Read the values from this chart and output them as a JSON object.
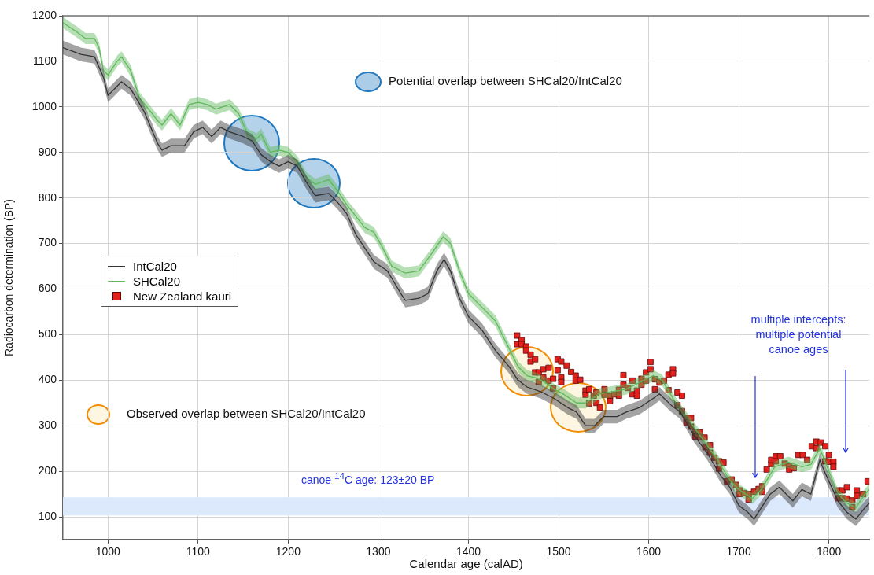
{
  "chart_data": {
    "type": "line",
    "xlabel": "Calendar age (calAD)",
    "ylabel": "Radiocarbon determination (BP)",
    "xlim": [
      950,
      1845
    ],
    "ylim": [
      50,
      1200
    ],
    "xticks": [
      1000,
      1100,
      1200,
      1300,
      1400,
      1500,
      1600,
      1700,
      1800
    ],
    "yticks": [
      100,
      200,
      300,
      400,
      500,
      600,
      700,
      800,
      900,
      1000,
      1100,
      1200
    ],
    "grid": true,
    "legend": "left",
    "series": [
      {
        "name": "IntCal20",
        "type": "line",
        "color": "#333333",
        "marker": "none",
        "x": [
          950,
          970,
          985,
          995,
          1000,
          1010,
          1015,
          1025,
          1040,
          1055,
          1060,
          1070,
          1085,
          1095,
          1105,
          1115,
          1125,
          1135,
          1150,
          1160,
          1170,
          1180,
          1190,
          1200,
          1210,
          1220,
          1230,
          1245,
          1255,
          1265,
          1275,
          1285,
          1295,
          1310,
          1325,
          1330,
          1345,
          1355,
          1365,
          1373,
          1380,
          1390,
          1400,
          1415,
          1430,
          1445,
          1455,
          1465,
          1480,
          1495,
          1510,
          1520,
          1530,
          1540,
          1550,
          1565,
          1575,
          1590,
          1605,
          1612,
          1625,
          1635,
          1650,
          1665,
          1680,
          1690,
          1700,
          1710,
          1717,
          1725,
          1735,
          1745,
          1760,
          1770,
          1780,
          1790,
          1795,
          1810,
          1820,
          1830,
          1840,
          1845
        ],
        "values": [
          1130,
          1115,
          1110,
          1065,
          1025,
          1045,
          1055,
          1040,
          990,
          920,
          905,
          915,
          915,
          945,
          955,
          935,
          955,
          945,
          935,
          925,
          895,
          880,
          870,
          880,
          870,
          835,
          805,
          810,
          790,
          765,
          720,
          690,
          660,
          640,
          590,
          575,
          580,
          590,
          640,
          665,
          640,
          580,
          540,
          510,
          465,
          430,
          400,
          385,
          375,
          360,
          340,
          330,
          300,
          300,
          320,
          320,
          330,
          340,
          360,
          370,
          345,
          330,
          280,
          240,
          190,
          165,
          125,
          110,
          95,
          120,
          150,
          165,
          135,
          160,
          150,
          225,
          200,
          135,
          110,
          95,
          120,
          130
        ],
        "lower": [
          1115,
          1100,
          1095,
          1050,
          1010,
          1030,
          1040,
          1025,
          975,
          905,
          890,
          900,
          900,
          930,
          940,
          920,
          940,
          930,
          920,
          910,
          880,
          865,
          855,
          865,
          855,
          820,
          790,
          795,
          775,
          750,
          705,
          675,
          645,
          625,
          575,
          560,
          565,
          575,
          625,
          650,
          625,
          565,
          525,
          495,
          450,
          415,
          385,
          370,
          360,
          345,
          325,
          315,
          285,
          285,
          305,
          305,
          315,
          325,
          345,
          355,
          330,
          315,
          265,
          225,
          175,
          150,
          110,
          95,
          80,
          105,
          135,
          150,
          120,
          145,
          135,
          210,
          185,
          120,
          95,
          80,
          105,
          115
        ],
        "upper": [
          1145,
          1130,
          1125,
          1080,
          1040,
          1060,
          1070,
          1055,
          1005,
          935,
          920,
          930,
          930,
          960,
          970,
          950,
          970,
          960,
          950,
          940,
          910,
          895,
          885,
          895,
          885,
          850,
          820,
          825,
          805,
          780,
          735,
          705,
          675,
          655,
          605,
          590,
          595,
          605,
          655,
          680,
          655,
          595,
          555,
          525,
          480,
          445,
          415,
          400,
          390,
          375,
          355,
          345,
          315,
          315,
          335,
          335,
          345,
          355,
          375,
          385,
          360,
          345,
          295,
          255,
          205,
          180,
          140,
          125,
          110,
          135,
          165,
          180,
          150,
          175,
          165,
          240,
          215,
          150,
          125,
          110,
          135,
          145
        ]
      },
      {
        "name": "SHCal20",
        "type": "line",
        "color": "#5fb85c",
        "marker": "none",
        "x": [
          950,
          965,
          975,
          985,
          990,
          995,
          1000,
          1010,
          1015,
          1025,
          1035,
          1045,
          1055,
          1060,
          1070,
          1080,
          1090,
          1100,
          1110,
          1120,
          1135,
          1145,
          1155,
          1165,
          1170,
          1180,
          1190,
          1200,
          1210,
          1220,
          1230,
          1245,
          1255,
          1265,
          1275,
          1285,
          1295,
          1305,
          1315,
          1330,
          1345,
          1360,
          1372,
          1380,
          1390,
          1400,
          1415,
          1430,
          1445,
          1455,
          1465,
          1475,
          1485,
          1495,
          1505,
          1520,
          1530,
          1545,
          1560,
          1575,
          1590,
          1605,
          1615,
          1630,
          1645,
          1660,
          1675,
          1690,
          1700,
          1715,
          1725,
          1740,
          1755,
          1770,
          1780,
          1790,
          1800,
          1810,
          1820,
          1830,
          1840,
          1845
        ],
        "values": [
          1185,
          1165,
          1150,
          1150,
          1130,
          1080,
          1070,
          1100,
          1110,
          1080,
          1020,
          995,
          970,
          960,
          985,
          960,
          1005,
          1010,
          1005,
          995,
          1005,
          985,
          940,
          930,
          940,
          900,
          905,
          900,
          880,
          845,
          830,
          840,
          815,
          785,
          760,
          735,
          725,
          690,
          650,
          635,
          640,
          680,
          715,
          700,
          640,
          590,
          560,
          530,
          470,
          430,
          410,
          405,
          395,
          380,
          370,
          350,
          350,
          370,
          375,
          380,
          395,
          410,
          400,
          350,
          310,
          270,
          230,
          180,
          160,
          140,
          160,
          210,
          220,
          210,
          215,
          250,
          200,
          150,
          130,
          120,
          150,
          160
        ],
        "lower": [
          1173,
          1153,
          1138,
          1138,
          1118,
          1068,
          1058,
          1088,
          1098,
          1068,
          1008,
          983,
          958,
          948,
          973,
          948,
          993,
          998,
          993,
          983,
          993,
          973,
          928,
          918,
          928,
          888,
          893,
          888,
          868,
          833,
          818,
          828,
          803,
          773,
          748,
          723,
          713,
          678,
          638,
          623,
          628,
          668,
          703,
          688,
          628,
          578,
          548,
          518,
          458,
          418,
          398,
          393,
          383,
          368,
          358,
          338,
          338,
          358,
          363,
          368,
          383,
          398,
          388,
          338,
          298,
          258,
          218,
          168,
          148,
          128,
          148,
          198,
          208,
          198,
          203,
          238,
          188,
          138,
          118,
          108,
          138,
          148
        ],
        "upper": [
          1197,
          1177,
          1162,
          1162,
          1142,
          1092,
          1082,
          1112,
          1122,
          1092,
          1032,
          1007,
          982,
          972,
          997,
          972,
          1017,
          1022,
          1017,
          1007,
          1017,
          997,
          952,
          942,
          952,
          912,
          917,
          912,
          892,
          857,
          842,
          852,
          827,
          797,
          772,
          747,
          737,
          702,
          662,
          647,
          652,
          692,
          727,
          712,
          652,
          602,
          572,
          542,
          482,
          442,
          422,
          417,
          407,
          392,
          382,
          362,
          362,
          382,
          387,
          392,
          407,
          422,
          412,
          362,
          322,
          282,
          242,
          192,
          172,
          152,
          172,
          222,
          232,
          222,
          227,
          262,
          212,
          162,
          142,
          132,
          162,
          172
        ]
      },
      {
        "name": "New Zealand kauri",
        "type": "scatter",
        "color": "#e3211c",
        "marker": "square",
        "x": [
          1454,
          1454,
          1459,
          1459,
          1464,
          1464,
          1469,
          1469,
          1474,
          1474,
          1478,
          1478,
          1483,
          1483,
          1489,
          1489,
          1494,
          1494,
          1499,
          1499,
          1503,
          1503,
          1503,
          1509,
          1514,
          1519,
          1519,
          1524,
          1530,
          1530,
          1534,
          1534,
          1539,
          1542,
          1542,
          1546,
          1551,
          1551,
          1557,
          1557,
          1562,
          1567,
          1567,
          1572,
          1572,
          1577,
          1582,
          1582,
          1587,
          1587,
          1592,
          1592,
          1597,
          1597,
          1602,
          1602,
          1607,
          1607,
          1612,
          1617,
          1622,
          1622,
          1627,
          1627,
          1632,
          1637,
          1632,
          1637,
          1642,
          1647,
          1642,
          1647,
          1652,
          1652,
          1657,
          1657,
          1662,
          1663,
          1668,
          1668,
          1673,
          1678,
          1678,
          1683,
          1687,
          1692,
          1697,
          1701,
          1701,
          1706,
          1711,
          1711,
          1717,
          1722,
          1726,
          1726,
          1731,
          1736,
          1736,
          1741,
          1741,
          1746,
          1751,
          1756,
          1756,
          1761,
          1766,
          1771,
          1776,
          1781,
          1786,
          1786,
          1791,
          1796,
          1796,
          1800,
          1800,
          1805,
          1805,
          1810,
          1810,
          1815,
          1815,
          1820,
          1820,
          1826,
          1826,
          1831,
          1831,
          1838,
          1843
        ],
        "values": [
          498,
          479,
          488,
          479,
          474,
          465,
          456,
          441,
          446,
          417,
          417,
          396,
          424,
          406,
          427,
          399,
          403,
          382,
          446,
          422,
          441,
          406,
          396,
          432,
          418,
          410,
          399,
          401,
          377,
          368,
          380,
          349,
          366,
          373,
          350,
          340,
          380,
          368,
          365,
          354,
          369,
          379,
          366,
          411,
          390,
          383,
          399,
          369,
          377,
          366,
          403,
          390,
          417,
          399,
          440,
          424,
          402,
          380,
          395,
          399,
          412,
          378,
          424,
          415,
          373,
          366,
          345,
          332,
          317,
          317,
          307,
          298,
          285,
          276,
          285,
          275,
          274,
          253,
          257,
          241,
          230,
          222,
          206,
          219,
          178,
          182,
          170,
          158,
          150,
          152,
          150,
          138,
          155,
          161,
          155,
          167,
          204,
          216,
          225,
          233,
          222,
          233,
          217,
          211,
          204,
          207,
          236,
          236,
          225,
          255,
          265,
          251,
          263,
          255,
          222,
          236,
          221,
          221,
          210,
          158,
          141,
          158,
          141,
          165,
          140,
          136,
          121,
          158,
          146,
          150,
          178
        ]
      }
    ],
    "bands": [
      {
        "axis": "y",
        "from": 103,
        "to": 143,
        "label": "canoe $^{14}$C age: 123±20 BP",
        "color": "#dce8fb"
      }
    ],
    "annotations": [
      "Potential overlap between SHCal20/IntCal20",
      "Observed overlap between SHCal20/IntCal20",
      "multiple intercepts: multiple potential canoe ages"
    ]
  }
}
